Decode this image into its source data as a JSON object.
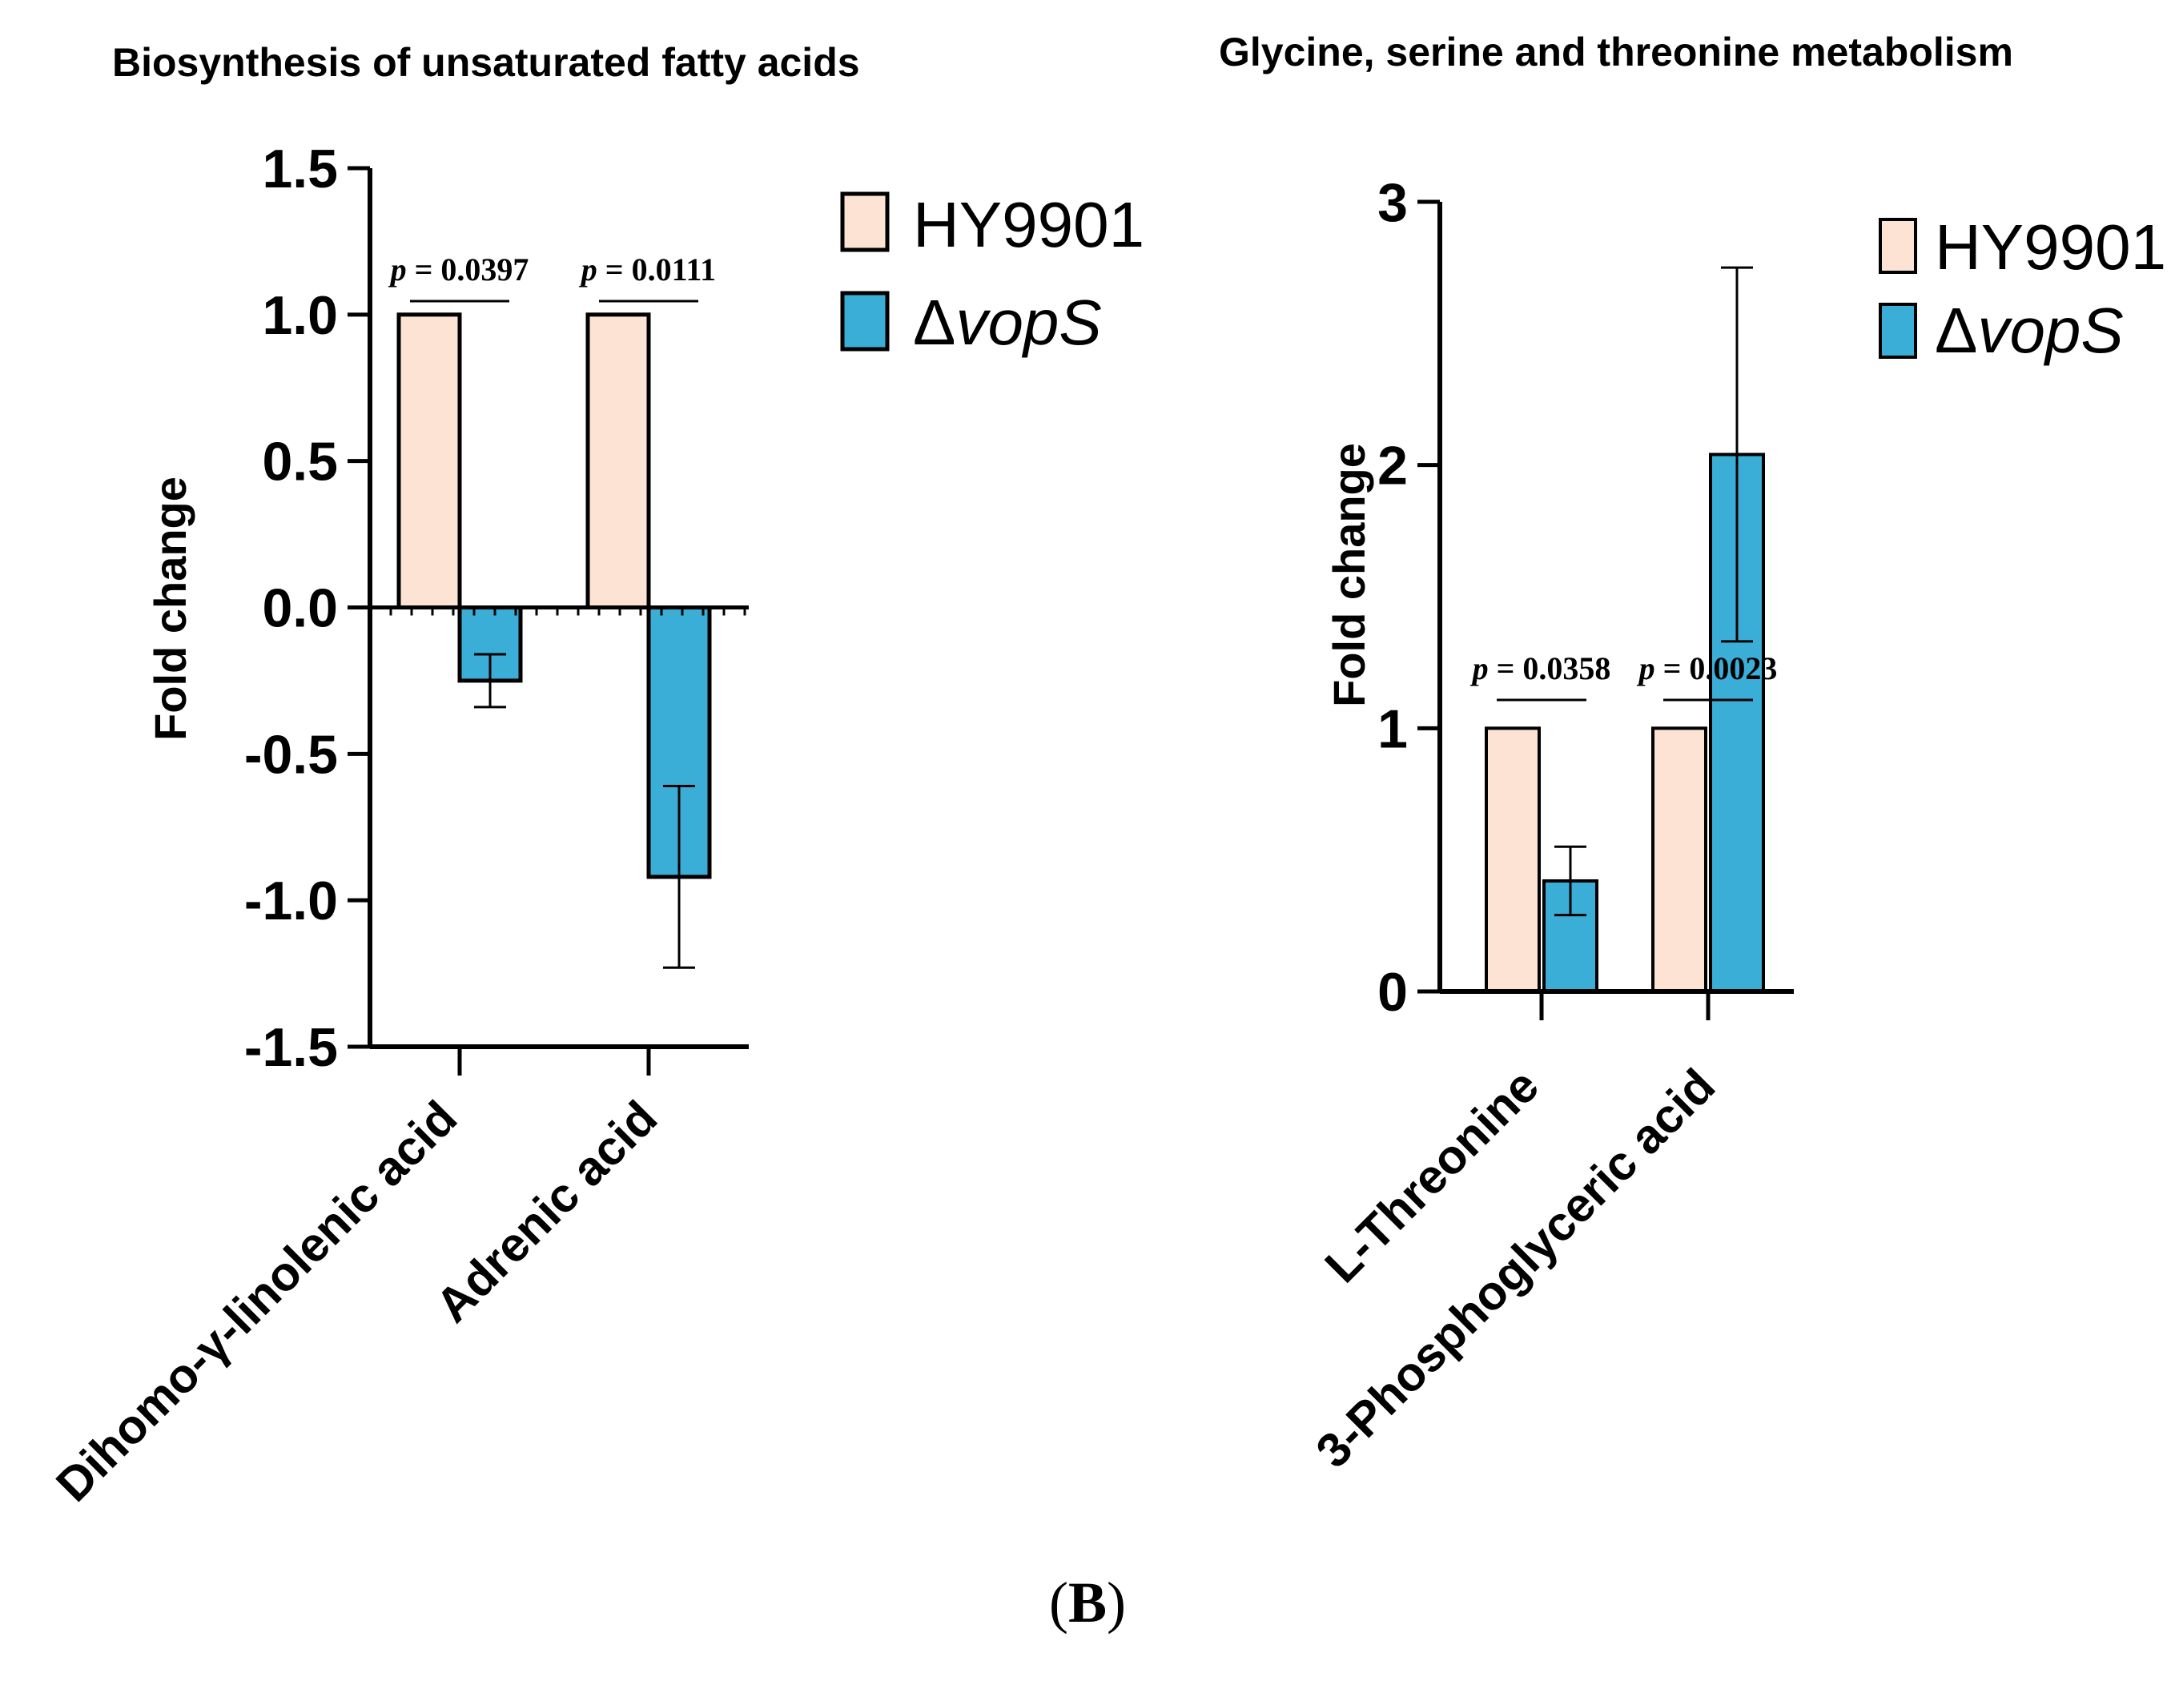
{
  "figure": {
    "panel_label_open": "(",
    "panel_label_letter": "B",
    "panel_label_close": ")"
  },
  "colors": {
    "wild_type": "#fde3d4",
    "mutant": "#3aaed6",
    "stroke": "#000000"
  },
  "chart_data": [
    {
      "type": "bar",
      "title": "Biosynthesis of unsaturated fatty acids",
      "xlabel": "",
      "ylabel": "Fold change",
      "ylim": [
        -1.5,
        1.5
      ],
      "yticks": [
        1.5,
        1.0,
        0.5,
        0.0,
        -0.5,
        -1.0,
        -1.5
      ],
      "ytick_labels": [
        "1.5",
        "1.0",
        "0.5",
        "0.0",
        "-0.5",
        "-1.0",
        "-1.5"
      ],
      "categories": [
        "Dihomo-γ-linolenic acid",
        "Adrenic acid"
      ],
      "series": [
        {
          "name": "HY9901",
          "values": [
            1.0,
            1.0
          ],
          "errors": [
            0,
            0
          ]
        },
        {
          "name": "ΔvopS",
          "name_prefix": "Δ",
          "name_italic": "vopS",
          "values": [
            -0.25,
            -0.92
          ],
          "errors": [
            0.09,
            0.31
          ]
        }
      ],
      "annotations": [
        {
          "text_p": "p",
          "text_rest": " = 0.0397",
          "category_index": 0
        },
        {
          "text_p": "p",
          "text_rest": " = 0.0111",
          "category_index": 1
        }
      ],
      "legend": "top-right"
    },
    {
      "type": "bar",
      "title": "Glycine, serine and threonine metabolism",
      "xlabel": "",
      "ylabel": "Fold change",
      "ylim": [
        0,
        3
      ],
      "yticks": [
        3,
        2,
        1,
        0
      ],
      "ytick_labels": [
        "3",
        "2",
        "1",
        "0"
      ],
      "categories": [
        "L-Threonine",
        "3-Phosphoglyceric acid"
      ],
      "series": [
        {
          "name": "HY9901",
          "values": [
            1.0,
            1.0
          ],
          "errors": [
            0,
            0
          ]
        },
        {
          "name": "ΔvopS",
          "name_prefix": "Δ",
          "name_italic": "vopS",
          "values": [
            0.42,
            2.04
          ],
          "errors": [
            0.13,
            0.71
          ]
        }
      ],
      "annotations": [
        {
          "text_p": "p",
          "text_rest": " = 0.0358",
          "category_index": 0
        },
        {
          "text_p": "p",
          "text_rest": " = 0.0023",
          "category_index": 1
        }
      ],
      "legend": "top-right"
    }
  ]
}
